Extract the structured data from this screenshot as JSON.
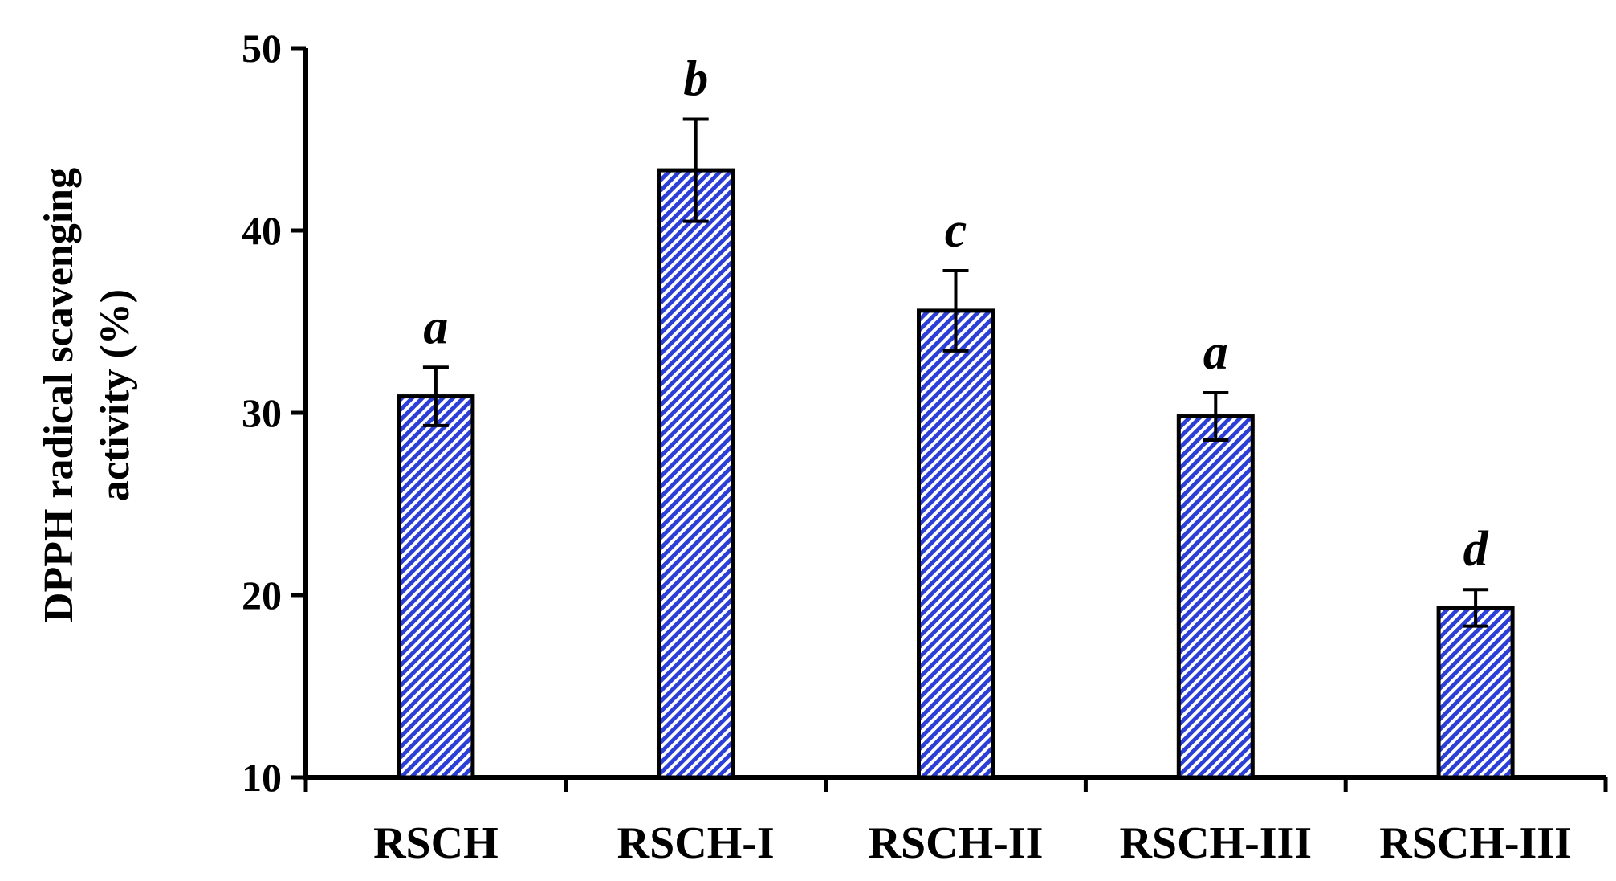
{
  "chart_data": {
    "type": "bar",
    "categories": [
      "RSCH",
      "RSCH-I",
      "RSCH-II",
      "RSCH-III",
      "RSCH-III"
    ],
    "values": [
      30.9,
      43.3,
      35.6,
      29.8,
      19.3
    ],
    "errors": [
      1.6,
      2.8,
      2.2,
      1.3,
      1.0
    ],
    "significance_letters": [
      "a",
      "b",
      "c",
      "a",
      "d"
    ],
    "title": "",
    "xlabel": "",
    "ylabel_lines": [
      "DPPH radical scavenging",
      "activity (%)"
    ],
    "ylim": [
      10,
      50
    ],
    "yticks": [
      "10",
      "20",
      "30",
      "40",
      "50"
    ],
    "grid": false,
    "legend": "none",
    "bar_fill_color": "#2b3fd6",
    "bar_stroke_color": "#000000",
    "bar_pattern": "diagonal-hatch"
  }
}
